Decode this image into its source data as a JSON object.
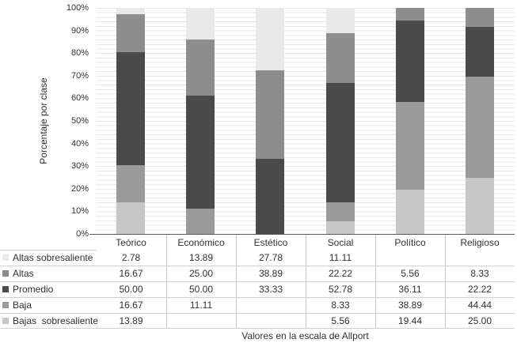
{
  "chart_data": {
    "type": "bar",
    "subtype": "stacked-100-percent",
    "title": "",
    "categories": [
      "Teórico",
      "Económico",
      "Estético",
      "Social",
      "Político",
      "Religioso"
    ],
    "series": [
      {
        "name": "Altas sobresaliente",
        "color": "#e9e9e9",
        "values": [
          2.78,
          13.89,
          27.78,
          11.11,
          0,
          0
        ]
      },
      {
        "name": "Altas",
        "color": "#8d8d8d",
        "values": [
          16.67,
          25.0,
          38.89,
          22.22,
          5.56,
          8.33
        ]
      },
      {
        "name": "Promedio",
        "color": "#4a4a4a",
        "values": [
          50.0,
          50.0,
          33.33,
          52.78,
          36.11,
          22.22
        ]
      },
      {
        "name": "Baja",
        "color": "#9b9b9b",
        "values": [
          16.67,
          11.11,
          0,
          8.33,
          38.89,
          44.44
        ]
      },
      {
        "name": "Bajas sobresaliente",
        "color": "#c7c7c7",
        "values": [
          13.89,
          0,
          0,
          5.56,
          19.44,
          25.0
        ]
      }
    ],
    "stack_order_top_to_bottom": [
      "Altas sobresaliente",
      "Altas",
      "Promedio",
      "Baja",
      "Bajas sobresaliente"
    ],
    "ylabel": "Porcentaje por clase",
    "xlabel": "Valores en la escala de Allport",
    "ylim": [
      0,
      100
    ],
    "y_ticks": [
      "0%",
      "10%",
      "20%",
      "30%",
      "40%",
      "50%",
      "60%",
      "70%",
      "80%",
      "90%",
      "100%"
    ],
    "grid": {
      "horizontal": true,
      "minor_interval_percent": 2
    },
    "legend_position": "data-table-left-column"
  },
  "table": {
    "row_labels": [
      "Altas sobresaliente",
      "Altas",
      "Promedio",
      "Baja",
      "Bajas  sobresaliente"
    ],
    "swatch_colors": [
      "#e9e9e9",
      "#8d8d8d",
      "#4a4a4a",
      "#9b9b9b",
      "#c7c7c7"
    ],
    "cells": [
      [
        "2.78",
        "13.89",
        "27.78",
        "11.11",
        "",
        ""
      ],
      [
        "16.67",
        "25.00",
        "38.89",
        "22.22",
        "5.56",
        "8.33"
      ],
      [
        "50.00",
        "50.00",
        "33.33",
        "52.78",
        "36.11",
        "22.22"
      ],
      [
        "16.67",
        "11.11",
        "",
        "8.33",
        "38.89",
        "44.44"
      ],
      [
        "13.89",
        "",
        "",
        "5.56",
        "19.44",
        "25.00"
      ]
    ]
  }
}
